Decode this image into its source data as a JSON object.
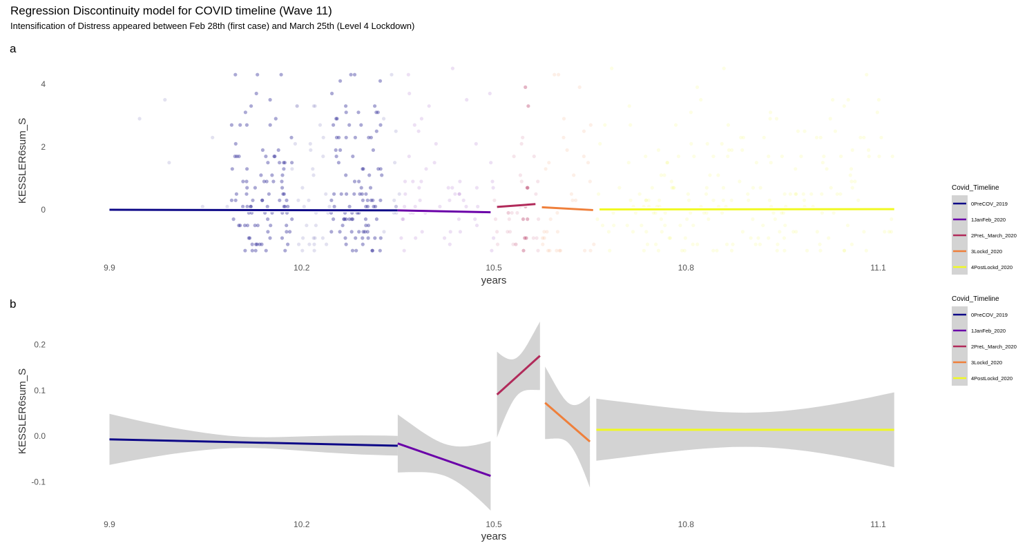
{
  "title": "Regression Discontinuity model for COVID timeline (Wave 11)",
  "subtitle": "Intensification of Distress appeared between Feb 28th (first case) and March 25th (Level 4 Lockdown)",
  "legend": {
    "title": "Covid_Timeline",
    "items": [
      {
        "label": "0PreCOV_2019",
        "color": "#0d0887"
      },
      {
        "label": "1JanFeb_2020",
        "color": "#6a00a8"
      },
      {
        "label": "2PreL_March_2020",
        "color": "#b12a5a"
      },
      {
        "label": "3Lockd_2020",
        "color": "#ef7f3a"
      },
      {
        "label": "4PostLockd_2020",
        "color": "#f0f921"
      }
    ]
  },
  "chart_data": [
    {
      "panel": "a",
      "type": "scatter",
      "xlabel": "years",
      "ylabel": "KESSLER6sum_S",
      "xlim": [
        9.865,
        11.135
      ],
      "ylim": [
        -1.45,
        4.7
      ],
      "x_ticks": [
        "9.9",
        "10.2",
        "10.5",
        "10.8",
        "11.1"
      ],
      "y_ticks": [
        "0",
        "2",
        "4"
      ],
      "grid": false,
      "legend_position": "right",
      "points_note": "dense jittered points at discrete distress levels, colored by timeline period",
      "series": [
        {
          "name": "0PreCOV_2019",
          "x": [
            9.9,
            10.35
          ],
          "y": [
            0.0,
            -0.02
          ]
        },
        {
          "name": "1JanFeb_2020",
          "x": [
            10.35,
            10.495
          ],
          "y": [
            -0.02,
            -0.08
          ]
        },
        {
          "name": "2PreL_March_2020",
          "x": [
            10.505,
            10.565
          ],
          "y": [
            0.09,
            0.18
          ]
        },
        {
          "name": "3Lockd_2020",
          "x": [
            10.575,
            10.655
          ],
          "y": [
            0.08,
            -0.01
          ]
        },
        {
          "name": "4PostLockd_2020",
          "x": [
            10.665,
            11.125
          ],
          "y": [
            0.01,
            0.02
          ]
        }
      ]
    },
    {
      "panel": "b",
      "type": "line",
      "xlabel": "years",
      "ylabel": "KESSLER6sum_S",
      "xlim": [
        9.865,
        11.135
      ],
      "ylim": [
        -0.16,
        0.26
      ],
      "x_ticks": [
        "9.9",
        "10.2",
        "10.5",
        "10.8",
        "11.1"
      ],
      "y_ticks": [
        "-0.1",
        "0.0",
        "0.1",
        "0.2"
      ],
      "grid": false,
      "legend_position": "right",
      "series": [
        {
          "name": "0PreCOV_2019",
          "x": [
            9.9,
            10.35
          ],
          "y": [
            -0.007,
            -0.021
          ],
          "ci_lower": [
            -0.063,
            -0.035
          ],
          "ci_upper": [
            0.049,
            0.008
          ]
        },
        {
          "name": "1JanFeb_2020",
          "x": [
            10.35,
            10.495
          ],
          "y": [
            -0.016,
            -0.087
          ],
          "ci_lower": [
            -0.079,
            -0.164
          ],
          "ci_upper": [
            0.048,
            -0.012
          ]
        },
        {
          "name": "2PreL_March_2020",
          "x": [
            10.505,
            10.572
          ],
          "y": [
            0.091,
            0.176
          ],
          "ci_lower": [
            -0.003,
            0.101
          ],
          "ci_upper": [
            0.185,
            0.251
          ]
        },
        {
          "name": "3Lockd_2020",
          "x": [
            10.58,
            10.65
          ],
          "y": [
            0.073,
            -0.012
          ],
          "ci_lower": [
            -0.007,
            -0.113
          ],
          "ci_upper": [
            0.152,
            0.088
          ]
        },
        {
          "name": "4PostLockd_2020",
          "x": [
            10.66,
            11.125
          ],
          "y": [
            0.014,
            0.014
          ],
          "ci_lower": [
            -0.054,
            -0.069
          ],
          "ci_upper": [
            0.082,
            0.095
          ]
        }
      ]
    }
  ]
}
